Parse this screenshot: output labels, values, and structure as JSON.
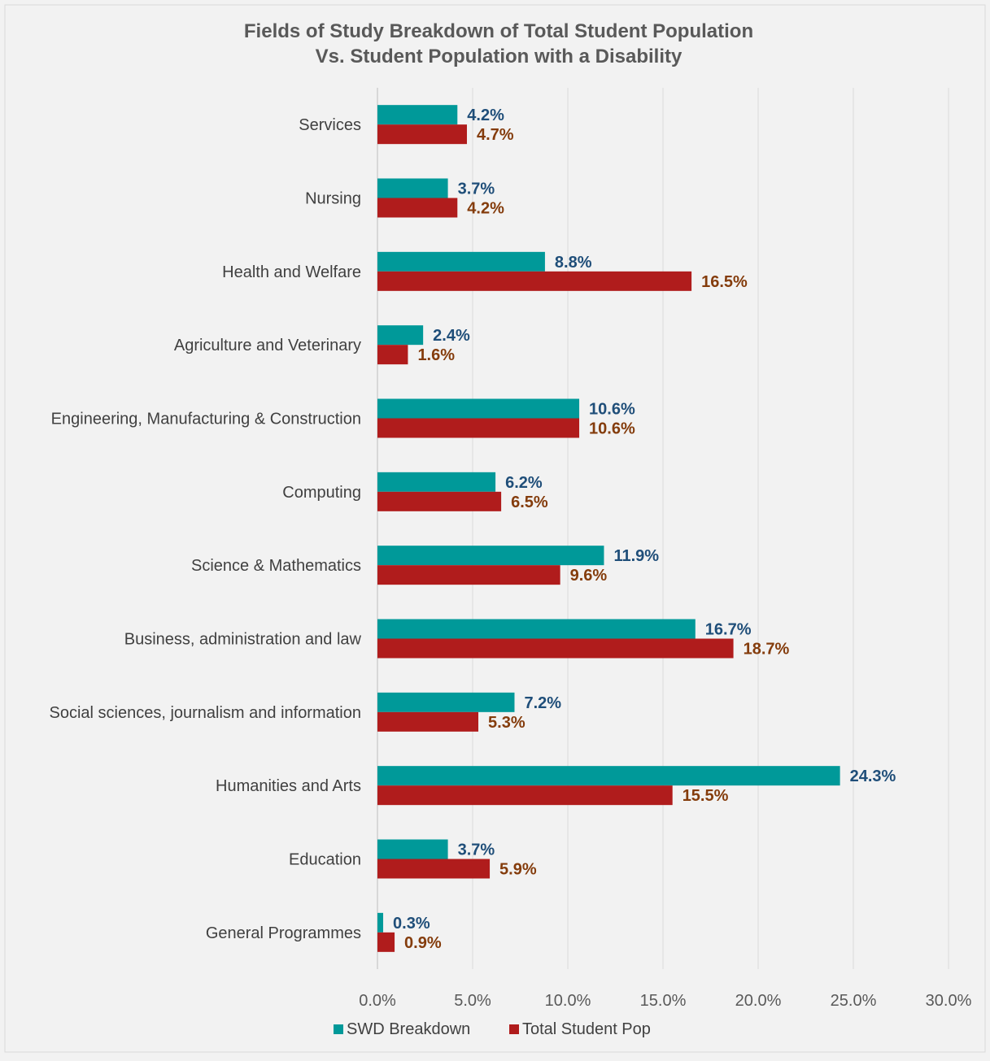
{
  "chart_data": {
    "type": "bar",
    "orientation": "horizontal",
    "title": "Fields of Study Breakdown of Total Student Population",
    "subtitle": "Vs. Student Population with a Disability",
    "categories": [
      "Services",
      "Nursing",
      "Health and Welfare",
      "Agriculture and Veterinary",
      "Engineering, Manufacturing & Construction",
      "Computing",
      "Science & Mathematics",
      "Business, administration and law",
      "Social sciences, journalism and information",
      "Humanities and Arts",
      "Education",
      "General Programmes"
    ],
    "series": [
      {
        "name": "SWD Breakdown",
        "color": "#009999",
        "label_color": "#1f4e79",
        "values": [
          4.2,
          3.7,
          8.8,
          2.4,
          10.6,
          6.2,
          11.9,
          16.7,
          7.2,
          24.3,
          3.7,
          0.3
        ],
        "labels": [
          "4.2%",
          "3.7%",
          "8.8%",
          "2.4%",
          "10.6%",
          "6.2%",
          "11.9%",
          "16.7%",
          "7.2%",
          "24.3%",
          "3.7%",
          "0.3%"
        ]
      },
      {
        "name": "Total Student Pop",
        "color": "#b01c1c",
        "label_color": "#843c0c",
        "values": [
          4.7,
          4.2,
          16.5,
          1.6,
          10.6,
          6.5,
          9.6,
          18.7,
          5.3,
          15.5,
          5.9,
          0.9
        ],
        "labels": [
          "4.7%",
          "4.2%",
          "16.5%",
          "1.6%",
          "10.6%",
          "6.5%",
          "9.6%",
          "18.7%",
          "5.3%",
          "15.5%",
          "5.9%",
          "0.9%"
        ]
      }
    ],
    "xlim": [
      0,
      30
    ],
    "xticks": [
      0,
      5,
      10,
      15,
      20,
      25,
      30
    ],
    "xtick_labels": [
      "0.0%",
      "5.0%",
      "10.0%",
      "15.0%",
      "20.0%",
      "25.0%",
      "30.0%"
    ],
    "grid": true,
    "legend_position": "bottom"
  }
}
